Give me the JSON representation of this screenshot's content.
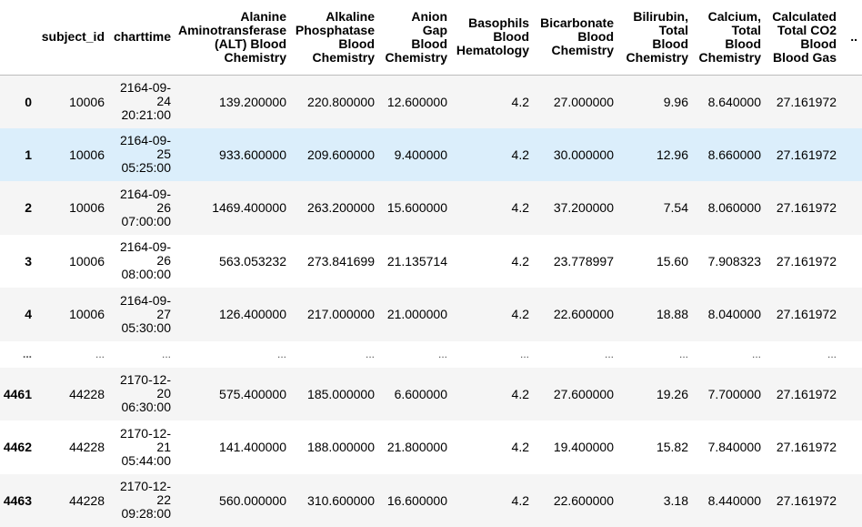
{
  "columns": [
    {
      "key": "index",
      "lines": [
        ""
      ]
    },
    {
      "key": "subject_id",
      "lines": [
        "subject_id"
      ]
    },
    {
      "key": "charttime",
      "lines": [
        "charttime"
      ]
    },
    {
      "key": "alt",
      "lines": [
        "Alanine",
        "Aminotransferase",
        "(ALT) Blood",
        "Chemistry"
      ]
    },
    {
      "key": "alk_phos",
      "lines": [
        "Alkaline",
        "Phosphatase",
        "Blood",
        "Chemistry"
      ]
    },
    {
      "key": "anion_gap",
      "lines": [
        "Anion",
        "Gap",
        "Blood",
        "Chemistry"
      ]
    },
    {
      "key": "basophils",
      "lines": [
        "Basophils",
        "Blood",
        "Hematology"
      ]
    },
    {
      "key": "bicarbonate",
      "lines": [
        "Bicarbonate",
        "Blood",
        "Chemistry"
      ]
    },
    {
      "key": "bilirubin",
      "lines": [
        "Bilirubin,",
        "Total",
        "Blood",
        "Chemistry"
      ]
    },
    {
      "key": "calcium",
      "lines": [
        "Calcium,",
        "Total",
        "Blood",
        "Chemistry"
      ]
    },
    {
      "key": "co2",
      "lines": [
        "Calculated",
        "Total CO2",
        "Blood",
        "Blood Gas"
      ]
    },
    {
      "key": "more",
      "lines": [
        ".."
      ]
    }
  ],
  "rows": [
    {
      "index": "0",
      "subject_id": "10006",
      "charttime": [
        "2164-09-",
        "24",
        "20:21:00"
      ],
      "alt": "139.200000",
      "alk_phos": "220.800000",
      "anion_gap": "12.600000",
      "basophils": "4.2",
      "bicarbonate": "27.000000",
      "bilirubin": "9.96",
      "calcium": "8.640000",
      "co2": "27.161972",
      "more": ""
    },
    {
      "index": "1",
      "subject_id": "10006",
      "charttime": [
        "2164-09-",
        "25",
        "05:25:00"
      ],
      "alt": "933.600000",
      "alk_phos": "209.600000",
      "anion_gap": "9.400000",
      "basophils": "4.2",
      "bicarbonate": "30.000000",
      "bilirubin": "12.96",
      "calcium": "8.660000",
      "co2": "27.161972",
      "more": ""
    },
    {
      "index": "2",
      "subject_id": "10006",
      "charttime": [
        "2164-09-",
        "26",
        "07:00:00"
      ],
      "alt": "1469.400000",
      "alk_phos": "263.200000",
      "anion_gap": "15.600000",
      "basophils": "4.2",
      "bicarbonate": "37.200000",
      "bilirubin": "7.54",
      "calcium": "8.060000",
      "co2": "27.161972",
      "more": ""
    },
    {
      "index": "3",
      "subject_id": "10006",
      "charttime": [
        "2164-09-",
        "26",
        "08:00:00"
      ],
      "alt": "563.053232",
      "alk_phos": "273.841699",
      "anion_gap": "21.135714",
      "basophils": "4.2",
      "bicarbonate": "23.778997",
      "bilirubin": "15.60",
      "calcium": "7.908323",
      "co2": "27.161972",
      "more": ""
    },
    {
      "index": "4",
      "subject_id": "10006",
      "charttime": [
        "2164-09-",
        "27",
        "05:30:00"
      ],
      "alt": "126.400000",
      "alk_phos": "217.000000",
      "anion_gap": "21.000000",
      "basophils": "4.2",
      "bicarbonate": "22.600000",
      "bilirubin": "18.88",
      "calcium": "8.040000",
      "co2": "27.161972",
      "more": ""
    },
    {
      "index": "...",
      "subject_id": "...",
      "charttime": [
        "..."
      ],
      "alt": "...",
      "alk_phos": "...",
      "anion_gap": "...",
      "basophils": "...",
      "bicarbonate": "...",
      "bilirubin": "...",
      "calcium": "...",
      "co2": "...",
      "more": ""
    },
    {
      "index": "4461",
      "subject_id": "44228",
      "charttime": [
        "2170-12-",
        "20",
        "06:30:00"
      ],
      "alt": "575.400000",
      "alk_phos": "185.000000",
      "anion_gap": "6.600000",
      "basophils": "4.2",
      "bicarbonate": "27.600000",
      "bilirubin": "19.26",
      "calcium": "7.700000",
      "co2": "27.161972",
      "more": ""
    },
    {
      "index": "4462",
      "subject_id": "44228",
      "charttime": [
        "2170-12-",
        "21",
        "05:44:00"
      ],
      "alt": "141.400000",
      "alk_phos": "188.000000",
      "anion_gap": "21.800000",
      "basophils": "4.2",
      "bicarbonate": "19.400000",
      "bilirubin": "15.82",
      "calcium": "7.840000",
      "co2": "27.161972",
      "more": ""
    },
    {
      "index": "4463",
      "subject_id": "44228",
      "charttime": [
        "2170-12-",
        "22",
        "09:28:00"
      ],
      "alt": "560.000000",
      "alk_phos": "310.600000",
      "anion_gap": "16.600000",
      "basophils": "4.2",
      "bicarbonate": "22.600000",
      "bilirubin": "3.18",
      "calcium": "8.440000",
      "co2": "27.161972",
      "more": ""
    }
  ],
  "hovered_row": 1,
  "colors": {
    "odd_row": "#f5f5f5",
    "even_row": "#ffffff",
    "hover_row": "#dbeefb",
    "header_border": "#bdbdbd"
  }
}
